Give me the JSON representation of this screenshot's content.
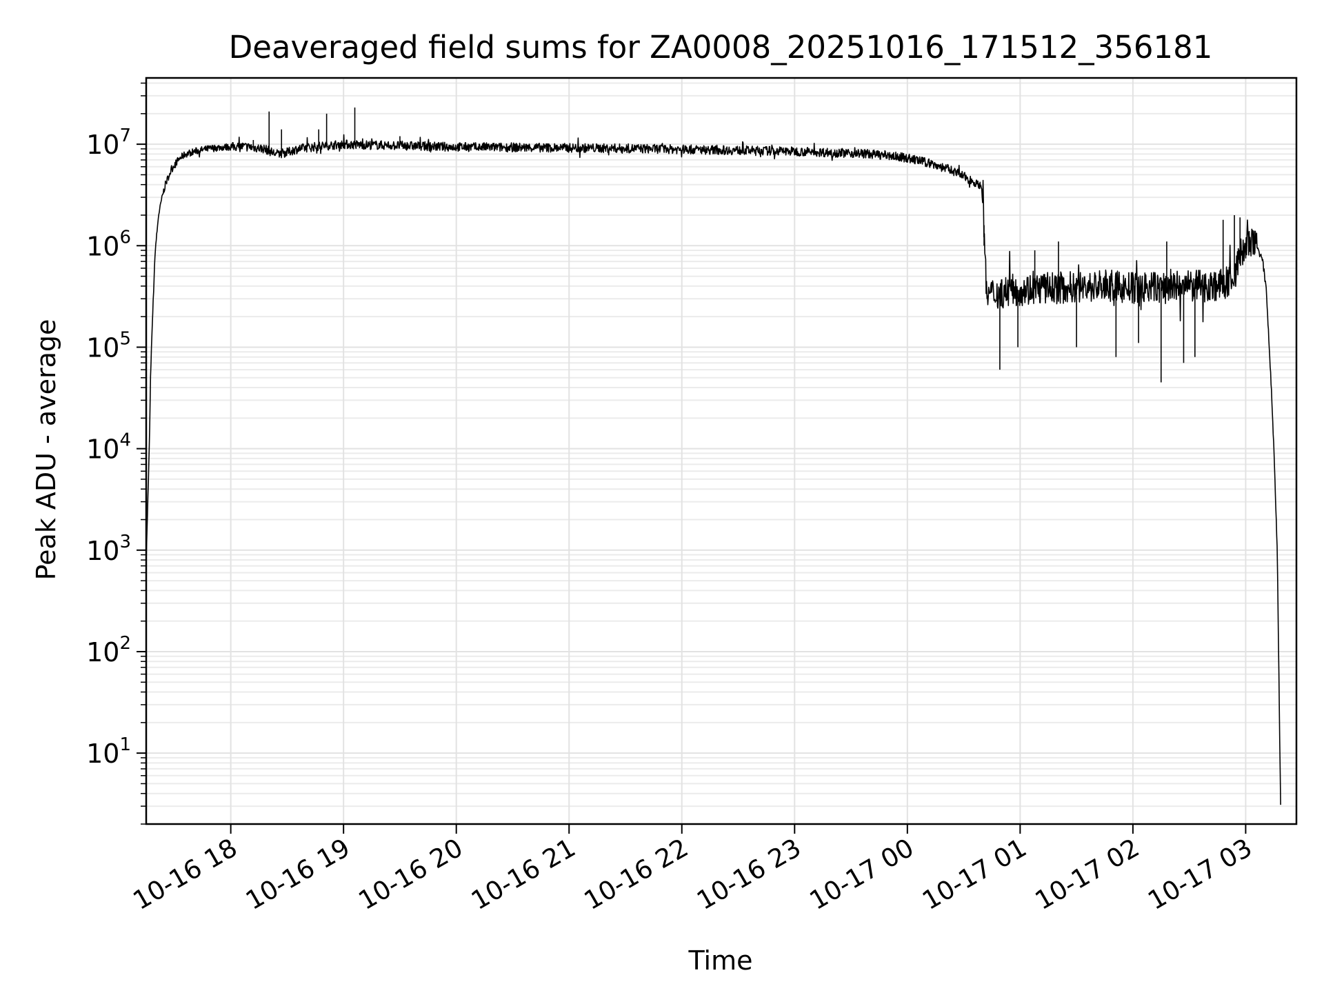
{
  "chart_data": {
    "type": "line",
    "title": "Deaveraged field sums for ZA0008_20251016_171512_356181",
    "xlabel": "Time",
    "ylabel": "Peak ADU - average",
    "yscale": "log",
    "ylim": [
      2,
      45000000
    ],
    "xlim_hours": [
      17.25,
      27.45
    ],
    "x_unit": "hours since 2025-10-16 00:00",
    "grid": true,
    "grid_which": "both",
    "legend": "none",
    "x_ticks": [
      {
        "value": 18,
        "label": "10-16 18"
      },
      {
        "value": 19,
        "label": "10-16 19"
      },
      {
        "value": 20,
        "label": "10-16 20"
      },
      {
        "value": 21,
        "label": "10-16 21"
      },
      {
        "value": 22,
        "label": "10-16 22"
      },
      {
        "value": 23,
        "label": "10-16 23"
      },
      {
        "value": 24,
        "label": "10-17 00"
      },
      {
        "value": 25,
        "label": "10-17 01"
      },
      {
        "value": 26,
        "label": "10-17 02"
      },
      {
        "value": 27,
        "label": "10-17 03"
      }
    ],
    "y_ticks": [
      {
        "value": 10,
        "base": "10",
        "exp": "1"
      },
      {
        "value": 100,
        "base": "10",
        "exp": "2"
      },
      {
        "value": 1000,
        "base": "10",
        "exp": "3"
      },
      {
        "value": 10000,
        "base": "10",
        "exp": "4"
      },
      {
        "value": 100000,
        "base": "10",
        "exp": "5"
      },
      {
        "value": 1000000,
        "base": "10",
        "exp": "6"
      },
      {
        "value": 10000000,
        "base": "10",
        "exp": "7"
      }
    ],
    "series": [
      {
        "name": "field sums",
        "color": "#000000",
        "x": [
          17.25,
          17.27,
          17.28,
          17.29,
          17.31,
          17.33,
          17.36,
          17.39,
          17.42,
          17.46,
          17.5,
          17.55,
          17.6,
          17.7,
          17.8,
          17.9,
          18.0,
          18.1,
          18.2,
          18.3,
          18.35,
          18.4,
          18.5,
          18.55,
          18.6,
          18.7,
          18.8,
          18.9,
          19.0,
          19.1,
          19.3,
          19.5,
          19.8,
          20.0,
          20.5,
          21.0,
          21.5,
          22.0,
          22.5,
          22.8,
          23.0,
          23.3,
          23.6,
          23.8,
          24.0,
          24.2,
          24.4,
          24.55,
          24.65,
          24.67,
          24.7,
          24.8,
          24.9,
          25.0,
          25.2,
          25.5,
          25.8,
          26.0,
          26.3,
          26.6,
          26.8,
          26.9,
          26.95,
          27.0,
          27.05,
          27.1,
          27.15,
          27.18,
          27.22,
          27.25,
          27.28,
          27.31
        ],
        "y": [
          800,
          5000,
          14000,
          60000,
          250000,
          900000,
          2000000,
          3000000,
          4000000,
          5200000,
          6300000,
          7300000,
          8000000,
          8600000,
          9000000,
          9300000,
          9400000,
          9500000,
          9300000,
          9000000,
          8500000,
          8000000,
          8300000,
          8700000,
          9000000,
          9300000,
          9600000,
          9800000,
          10000000,
          9900000,
          9800000,
          9700000,
          9500000,
          9400000,
          9300000,
          9200000,
          9100000,
          8900000,
          8700000,
          8600000,
          8500000,
          8300000,
          8100000,
          7800000,
          7300000,
          6500000,
          5500000,
          4500000,
          3900000,
          3500000,
          330000,
          340000,
          360000,
          370000,
          380000,
          390000,
          400000,
          380000,
          390000,
          400000,
          410000,
          500000,
          800000,
          1000000,
          1050000,
          1000000,
          700000,
          400000,
          60000,
          10000,
          1000,
          3
        ]
      }
    ],
    "spikes": [
      {
        "x": 18.2,
        "y": 11000000
      },
      {
        "x": 18.34,
        "y": 21000000
      },
      {
        "x": 18.45,
        "y": 14000000
      },
      {
        "x": 18.78,
        "y": 14000000
      },
      {
        "x": 18.85,
        "y": 20000000
      },
      {
        "x": 19.1,
        "y": 23000000
      },
      {
        "x": 19.5,
        "y": 12000000
      },
      {
        "x": 24.68,
        "y": 1000000
      },
      {
        "x": 24.82,
        "y": 60000
      },
      {
        "x": 24.98,
        "y": 100000
      },
      {
        "x": 25.13,
        "y": 900000
      },
      {
        "x": 25.34,
        "y": 1100000
      },
      {
        "x": 25.5,
        "y": 100000
      },
      {
        "x": 25.85,
        "y": 80000
      },
      {
        "x": 26.05,
        "y": 110000
      },
      {
        "x": 26.25,
        "y": 45000
      },
      {
        "x": 26.3,
        "y": 1100000
      },
      {
        "x": 26.45,
        "y": 70000
      },
      {
        "x": 26.55,
        "y": 80000
      },
      {
        "x": 26.8,
        "y": 1800000
      },
      {
        "x": 26.9,
        "y": 2000000
      },
      {
        "x": 26.95,
        "y": 1900000
      }
    ]
  }
}
